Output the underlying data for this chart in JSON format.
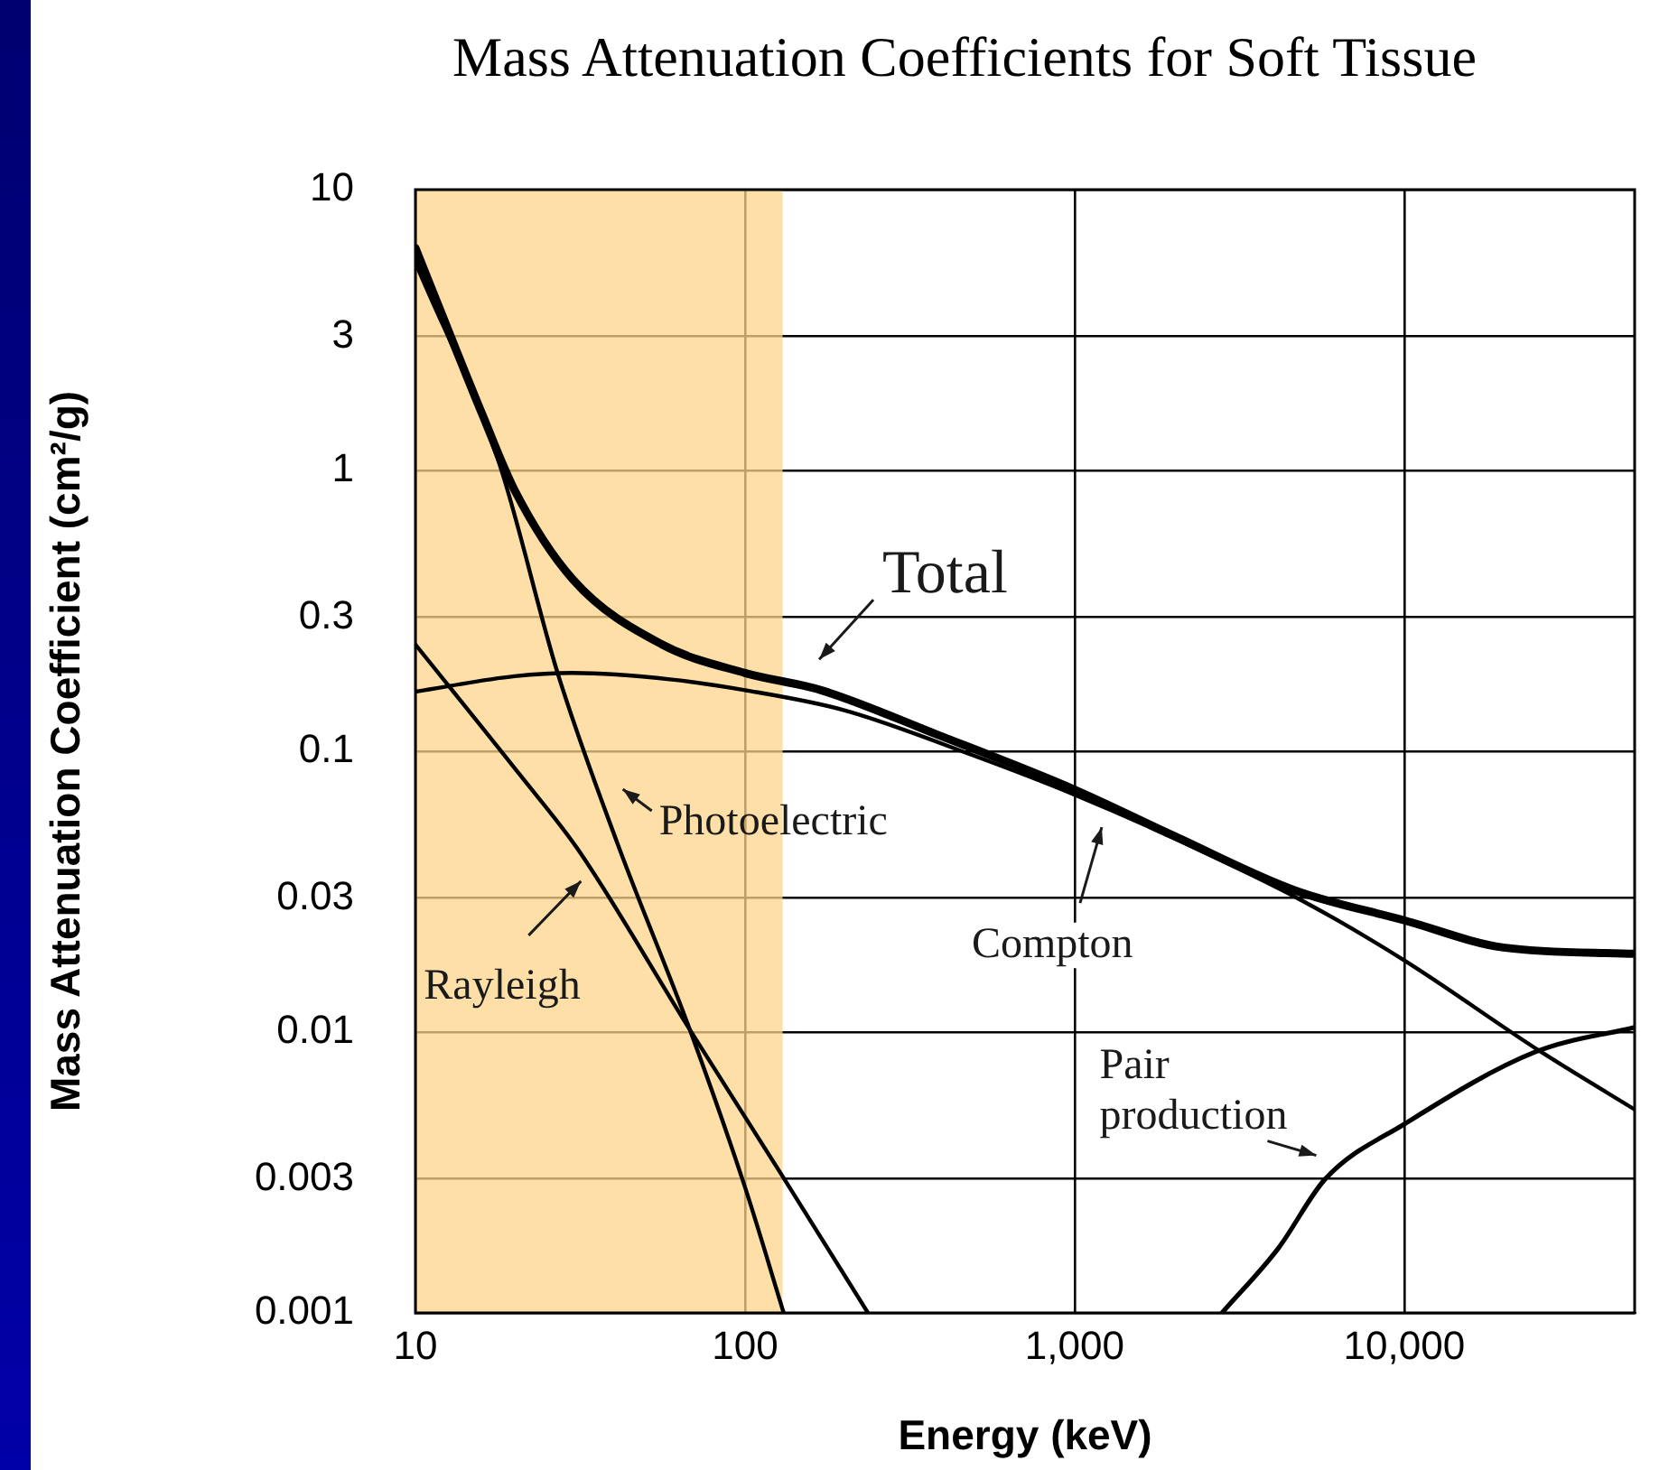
{
  "chart_data": {
    "type": "line",
    "title": "Mass Attenuation Coefficients for Soft Tissue",
    "xlabel": "Energy (keV)",
    "ylabel": "Mass Attenuation Coefficient (cm²/g)",
    "series": [
      {
        "name": "Total",
        "color": "#000000",
        "x": [
          10,
          16,
          20,
          30,
          56,
          100,
          170,
          380,
          1000,
          2000,
          4650,
          10000,
          20000,
          50000
        ],
        "values": [
          6.2,
          1.57,
          0.85,
          0.41,
          0.24,
          0.19,
          0.165,
          0.115,
          0.073,
          0.05,
          0.032,
          0.025,
          0.02,
          0.019
        ]
      },
      {
        "name": "Compton",
        "color": "#000000",
        "x": [
          10,
          20,
          30,
          60,
          100,
          200,
          500,
          1000,
          2000,
          5000,
          10000,
          26000,
          50000
        ],
        "values": [
          0.163,
          0.185,
          0.19,
          0.18,
          0.165,
          0.14,
          0.096,
          0.07,
          0.049,
          0.029,
          0.018,
          0.0085,
          0.0053
        ]
      },
      {
        "name": "Photoelectric",
        "color": "#000000",
        "x": [
          10,
          18,
          27,
          41,
          68,
          100,
          131
        ],
        "values": [
          5.5,
          1.05,
          0.19,
          0.047,
          0.0102,
          0.0028,
          0.001
        ]
      },
      {
        "name": "Rayleigh",
        "color": "#000000",
        "x": [
          10,
          21,
          31,
          68,
          127,
          236
        ],
        "values": [
          0.24,
          0.081,
          0.045,
          0.0102,
          0.0032,
          0.001
        ]
      },
      {
        "name": "Pair production",
        "color": "#000000",
        "x": [
          2800,
          4150,
          5760,
          10000,
          25000,
          50000
        ],
        "values": [
          0.001,
          0.0017,
          0.003,
          0.0047,
          0.0085,
          0.0104
        ]
      }
    ],
    "xlim": [
      10,
      50000
    ],
    "ylim": [
      0.001,
      10
    ],
    "xticks": [
      10,
      100,
      {
        "value": 1000,
        "label": "1,000"
      },
      {
        "value": 10000,
        "label": "10,000"
      }
    ],
    "yticks": [
      0.001,
      0.003,
      0.01,
      0.03,
      0.1,
      0.3,
      1,
      3,
      10
    ],
    "log": "xy",
    "grid": true,
    "legend": false,
    "marker": "none",
    "line_style": "solid",
    "bands": [
      {
        "axis": "x",
        "from": 10,
        "to": 130,
        "color": "#fdd48a"
      }
    ]
  }
}
